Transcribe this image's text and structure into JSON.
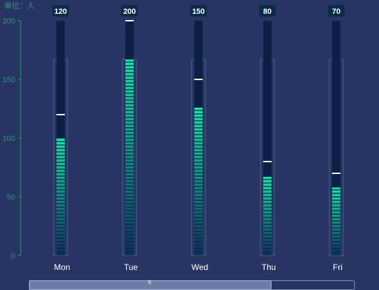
{
  "chart_data": {
    "type": "bar",
    "unit_label": "单位：人",
    "categories": [
      "Mon",
      "Tue",
      "Wed",
      "Thu",
      "Fri"
    ],
    "series": [
      {
        "values": [
          120,
          200,
          150,
          80,
          70
        ]
      },
      {
        "values": [
          100,
          167,
          126,
          67,
          58
        ]
      }
    ],
    "ylim": [
      0,
      200
    ],
    "yticks": [
      0,
      50,
      100,
      150,
      200
    ],
    "grid": false,
    "colors": {
      "background": "#283463",
      "axis": "#2a9d78",
      "capacity_bar": "#0d1f45",
      "fill_top": "#1de3a3",
      "fill_bottom": "#0d2f5a",
      "frame": "#3a6d8e",
      "marker": "#ffffff",
      "badge": "#0c2b4a"
    }
  },
  "zoom_slider": {
    "start_fraction": 0,
    "end_fraction": 0.74
  }
}
